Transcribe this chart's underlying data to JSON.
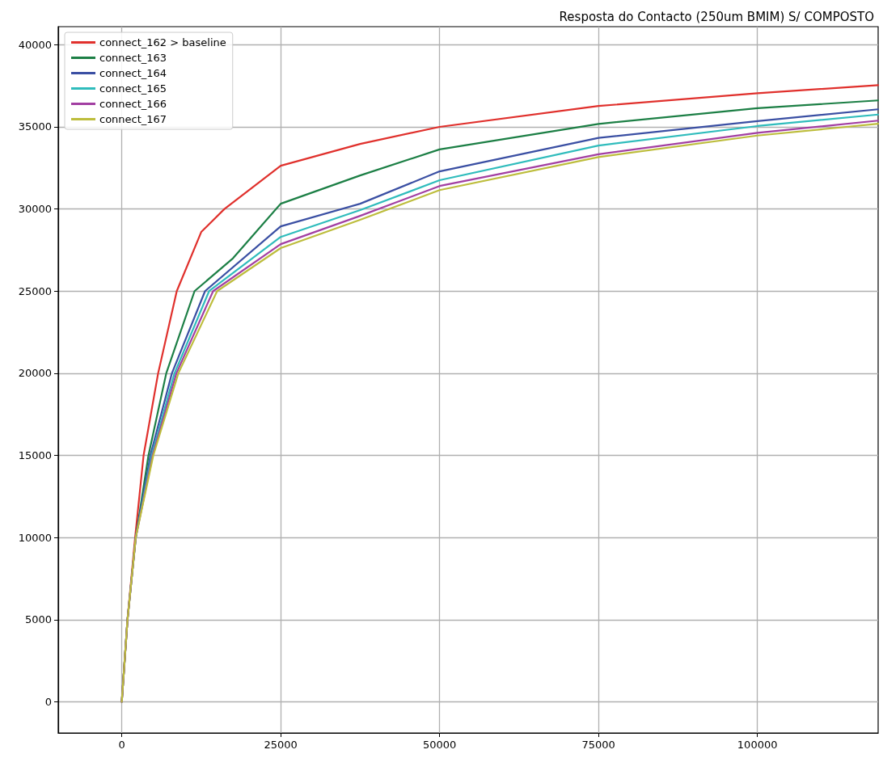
{
  "chart_data": {
    "type": "line",
    "title": "Resposta do Contacto (250um BMIM) S/ COMPOSTO",
    "xlim": [
      -10000,
      119000
    ],
    "xticks": [
      0,
      25000,
      50000,
      75000,
      100000
    ],
    "ylim": [
      -1900,
      41100
    ],
    "yticks": [
      0,
      5000,
      10000,
      15000,
      20000,
      25000,
      30000,
      35000,
      40000
    ],
    "grid": true,
    "legend": "top left",
    "marker": "none",
    "line_style": "solid",
    "series": [
      {
        "name": "connect_162 > baseline",
        "color": "#e0302c",
        "x": [
          0,
          900,
          2100,
          3430,
          5720,
          8650,
          12500,
          16150,
          25000,
          37500,
          50000,
          75000,
          100000,
          119000
        ],
        "values": [
          0,
          5000,
          10000,
          15000,
          20000,
          25000,
          28600,
          30000,
          32630,
          33960,
          35000,
          36270,
          37050,
          37540
        ]
      },
      {
        "name": "connect_163",
        "color": "#1c7f45",
        "x": [
          0,
          900,
          2200,
          4200,
          7000,
          11450,
          17500,
          25000,
          37500,
          50000,
          75000,
          100000,
          119000
        ],
        "values": [
          0,
          5000,
          10000,
          15000,
          20000,
          25000,
          27000,
          30320,
          32040,
          33630,
          35180,
          36140,
          36610
        ]
      },
      {
        "name": "connect_164",
        "color": "#3a4fa3",
        "x": [
          0,
          900,
          2200,
          4500,
          7890,
          13100,
          25000,
          37500,
          50000,
          75000,
          100000,
          119000
        ],
        "values": [
          0,
          5000,
          10000,
          15000,
          20000,
          25000,
          28940,
          30320,
          32290,
          34330,
          35350,
          36070
        ]
      },
      {
        "name": "connect_165",
        "color": "#2fbcbc",
        "x": [
          2200,
          4700,
          8300,
          13740,
          25000,
          37500,
          50000,
          75000,
          100000,
          119000
        ],
        "values": [
          10000,
          15000,
          20000,
          25000,
          28300,
          29930,
          31750,
          33860,
          35050,
          35750
        ]
      },
      {
        "name": "connect_166",
        "color": "#a23fa2",
        "x": [
          0,
          900,
          2200,
          4850,
          8600,
          14370,
          25000,
          37500,
          50000,
          75000,
          100000,
          119000
        ],
        "values": [
          0,
          5000,
          10000,
          15000,
          20000,
          25000,
          27860,
          29580,
          31400,
          33330,
          34640,
          35380
        ]
      },
      {
        "name": "connect_167",
        "color": "#bdbd3c",
        "x": [
          0,
          900,
          2200,
          4960,
          8900,
          15000,
          25000,
          37500,
          50000,
          75000,
          100000,
          119000
        ],
        "values": [
          0,
          5000,
          10000,
          15000,
          20000,
          25000,
          27620,
          29340,
          31150,
          33160,
          34470,
          35190
        ]
      }
    ]
  }
}
